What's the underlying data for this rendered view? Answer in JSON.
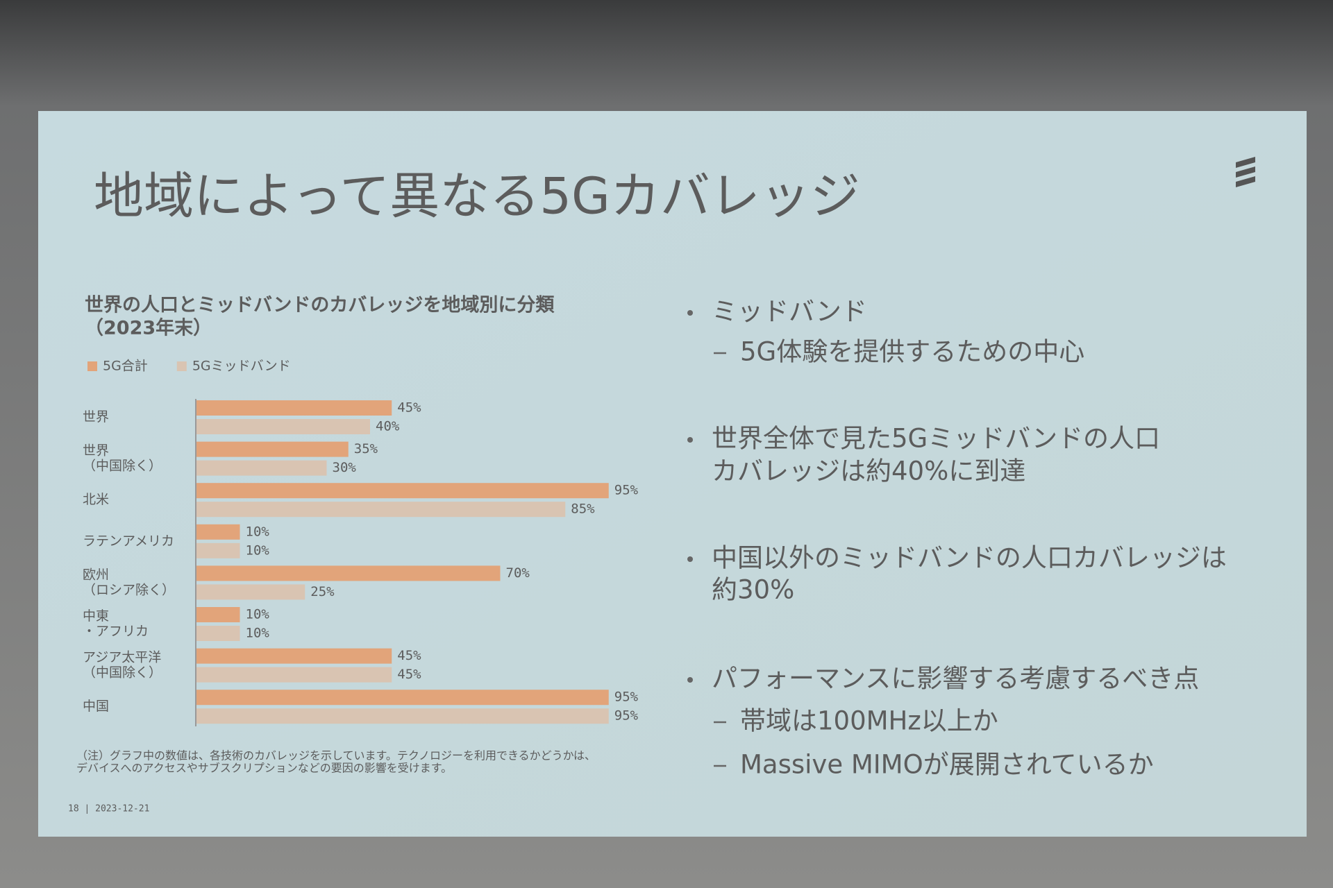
{
  "slide_title": "地域によって異なる5Gカバレッジ",
  "chart_data": {
    "type": "bar",
    "orientation": "horizontal",
    "title": "世界の人口とミッドバンドのカバレッジを地域別に分類",
    "subtitle": "（2023年末）",
    "categories": [
      [
        "世界"
      ],
      [
        "世界",
        "（中国除く）"
      ],
      [
        "北米"
      ],
      [
        "ラテンアメリカ"
      ],
      [
        "欧州",
        "（ロシア除く）"
      ],
      [
        "中東",
        "・アフリカ"
      ],
      [
        "アジア太平洋",
        "（中国除く）"
      ],
      [
        "中国"
      ]
    ],
    "series": [
      {
        "name": "5G合計",
        "color": "#e2a47a",
        "values": [
          45,
          35,
          95,
          10,
          70,
          10,
          45,
          95
        ],
        "value_labels": [
          "45%",
          "35%",
          "95%",
          "10%",
          "70%",
          "10%",
          "45%",
          "95%"
        ]
      },
      {
        "name": "5Gミッドバンド",
        "color": "#d9c4b2",
        "values": [
          40,
          30,
          85,
          10,
          25,
          10,
          45,
          95
        ],
        "value_labels": [
          "40%",
          "30%",
          "85%",
          "10%",
          "25%",
          "10%",
          "45%",
          "95%"
        ]
      }
    ],
    "legend": "top-left",
    "note": [
      "（注）グラフ中の数値は、各技術のカバレッジを示しています。テクノロジーを利用できるかどうかは、",
      "デバイスへのアクセスやサブスクリプションなどの要因の影響を受けます。"
    ]
  },
  "bullets": [
    {
      "lines": [
        "ミッドバンド"
      ],
      "subs": [
        "5G体験を提供するための中心"
      ]
    },
    {
      "lines": [
        "世界全体で見た5Gミッドバンドの人口",
        "カバレッジは約40%に到達"
      ],
      "subs": []
    },
    {
      "lines": [
        "中国以外のミッドバンドの人口カバレッジは",
        "約30%"
      ],
      "subs": []
    },
    {
      "lines": [
        "パフォーマンスに影響する考慮するべき点"
      ],
      "subs": [
        "帯域は100MHz以上か",
        "Massive MIMOが展開されているか"
      ]
    }
  ],
  "footer": "18 | 2023-12-21"
}
